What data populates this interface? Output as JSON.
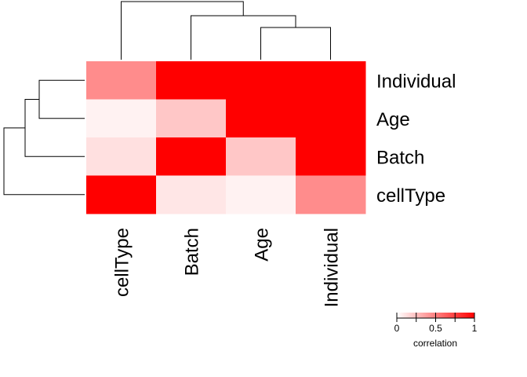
{
  "chart_data": {
    "type": "heatmap",
    "title": "",
    "rows": [
      "Individual",
      "Age",
      "Batch",
      "cellType"
    ],
    "columns": [
      "cellType",
      "Batch",
      "Age",
      "Individual"
    ],
    "values": [
      [
        0.45,
        1.0,
        1.0,
        1.0
      ],
      [
        0.05,
        0.22,
        1.0,
        1.0
      ],
      [
        0.12,
        1.0,
        0.22,
        1.0
      ],
      [
        1.0,
        0.1,
        0.05,
        0.45
      ]
    ],
    "color_scale": {
      "low": "#ffffff",
      "high": "#ff0000",
      "range": [
        0,
        1
      ]
    },
    "legend": {
      "title": "correlation",
      "ticks": [
        "0",
        "0.5",
        "1"
      ],
      "placement": "bottom-right"
    },
    "dendrograms": {
      "row": "left",
      "column": "top"
    },
    "grid": false
  }
}
